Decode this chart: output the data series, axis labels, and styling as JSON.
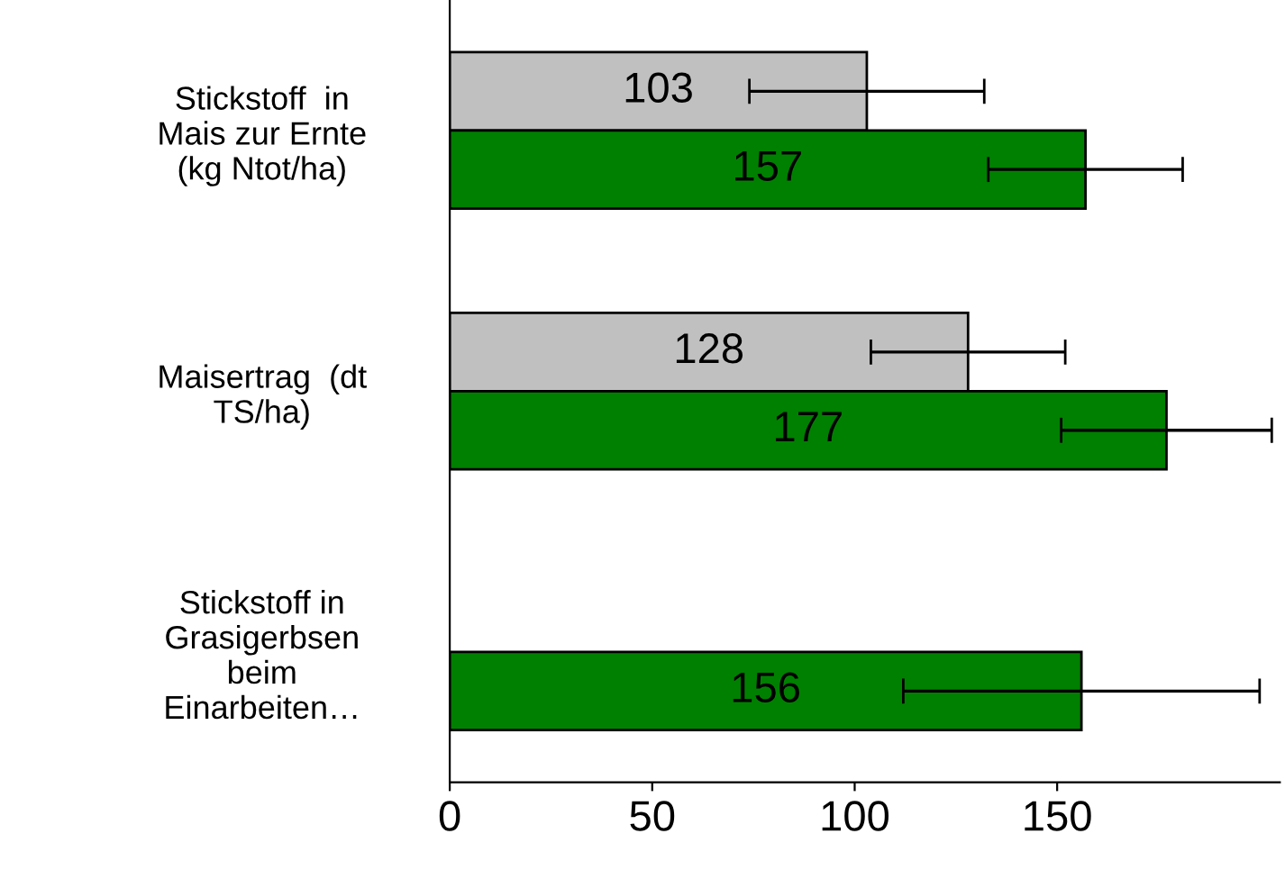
{
  "chart_data": {
    "type": "bar",
    "orientation": "horizontal",
    "categories": [
      "Stickstoff  in\nMais zur Ernte\n(kg Ntot/ha)",
      "Maisertrag  (dt\nTS/ha)",
      "Stickstoff in\nGrasigerbsen\nbeim\nEinarbeiten…"
    ],
    "series": [
      {
        "color": "#c0c0c0",
        "values": [
          103,
          128,
          null
        ],
        "errors": [
          29,
          24,
          null
        ]
      },
      {
        "color": "#008000",
        "values": [
          157,
          177,
          156
        ],
        "errors": [
          24,
          26,
          44
        ]
      }
    ],
    "xlim": [
      0,
      205
    ],
    "xticks": [
      0,
      50,
      100,
      150
    ],
    "data_labels": true,
    "grid": false,
    "legend": false
  }
}
